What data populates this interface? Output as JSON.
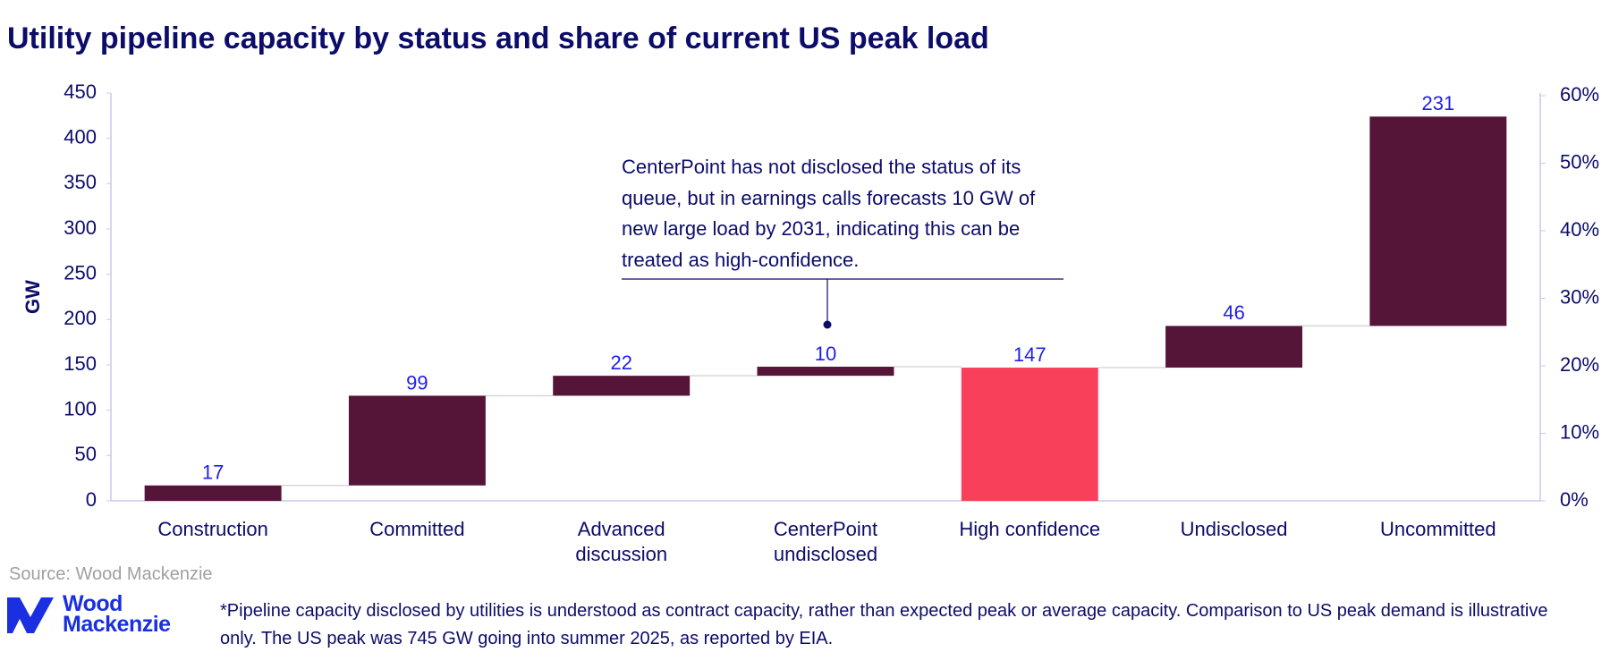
{
  "chart_data": {
    "type": "waterfall",
    "title": "Utility pipeline capacity by status and share of current US peak load",
    "y_label": "GW",
    "categories": [
      "Construction",
      "Committed",
      "Advanced discussion",
      "CenterPoint undisclosed",
      "High confidence",
      "Undisclosed",
      "Uncommitted"
    ],
    "values": [
      17,
      99,
      22,
      10,
      147,
      46,
      231
    ],
    "is_total": [
      false,
      false,
      false,
      false,
      true,
      false,
      false
    ],
    "color": "#541539",
    "total_color": "#f9405a",
    "value_label_color": "#1f1fe6",
    "ylim": [
      0,
      450
    ],
    "yticks": [
      0,
      50,
      100,
      150,
      200,
      250,
      300,
      350,
      400,
      450
    ],
    "y2lim": [
      0,
      60.4
    ],
    "y2ticks": [
      {
        "value": 0,
        "label": "0%"
      },
      {
        "value": 10,
        "label": "10%"
      },
      {
        "value": 20,
        "label": "20%"
      },
      {
        "value": 30,
        "label": "30%"
      },
      {
        "value": 40,
        "label": "40%"
      },
      {
        "value": 50,
        "label": "50%"
      },
      {
        "value": 60,
        "label": "60%"
      }
    ],
    "annotation": "CenterPoint has not disclosed the status of its queue, but in earnings calls forecasts 10 GW of new large load by 2031, indicating this can be treated as high-confidence.",
    "source": "Source: Wood Mackenzie",
    "footnote": "*Pipeline capacity disclosed by utilities is understood as contract capacity, rather than expected peak or average capacity. Comparison to US peak demand is illustrative only. The US peak was 745 GW going into summer 2025, as reported by EIA."
  },
  "logo": {
    "lines": [
      "Wood",
      "Mackenzie"
    ]
  }
}
